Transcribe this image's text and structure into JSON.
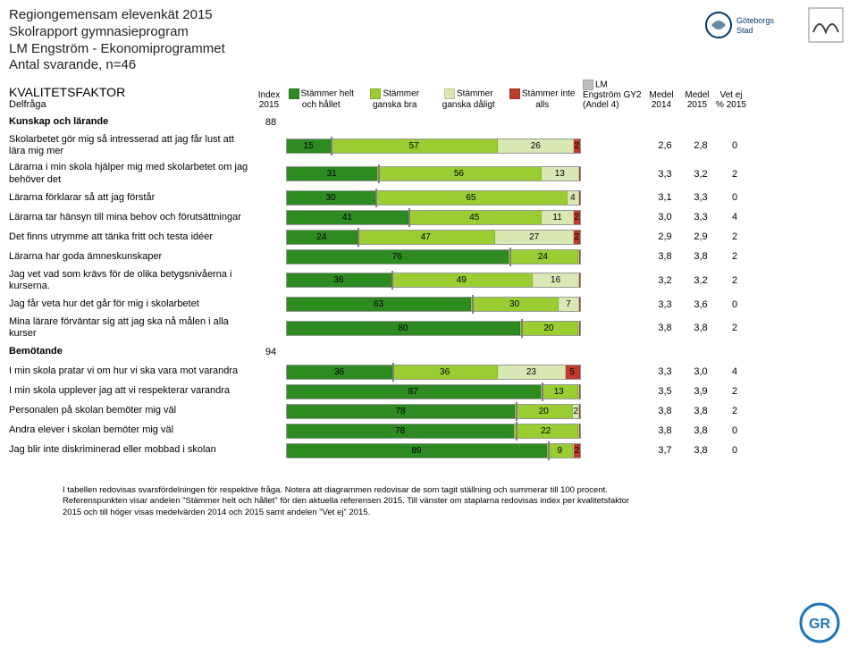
{
  "header": {
    "line1": "Regiongemensam elevenkät 2015",
    "line2": "Skolrapport gymnasieprogram",
    "line3": "LM Engström - Ekonomiprogrammet",
    "line4": "Antal svarande, n=46"
  },
  "logos": {
    "left": "Göteborgs Stad",
    "right": ""
  },
  "columns": {
    "kvalitet": "KVALITETSFAKTOR",
    "delfraga": "Delfråga",
    "index": "Index 2015",
    "seg1": "Stämmer helt och hållet",
    "seg2": "Stämmer ganska bra",
    "seg3": "Stämmer ganska dåligt",
    "seg4": "Stämmer inte alls",
    "ref": "LM Engström GY2 (Andel 4)",
    "m14": "Medel 2014",
    "m15": "Medel 2015",
    "vet": "Vet ej % 2015"
  },
  "colors": {
    "seg1": "#2e8b22",
    "seg2": "#9acd32",
    "seg3": "#d9e7b5",
    "seg4": "#c0392b",
    "ref_line": "#808080",
    "ref_legend": "#bfbfbf",
    "bar_border": "#999999"
  },
  "sections": [
    {
      "title": "Kunskap och lärande",
      "index": 88,
      "rows": [
        {
          "q": "Skolarbetet gör mig så  intresserad att jag får lust att lära mig mer",
          "segs": [
            15,
            57,
            26,
            2
          ],
          "ref": null,
          "m14": "2,6",
          "m15": "2,8",
          "vet": "0"
        },
        {
          "q": "Lärarna i min skola hjälper mig med skolarbetet om jag behöver det",
          "segs": [
            31,
            56,
            13,
            0
          ],
          "ref": null,
          "m14": "3,3",
          "m15": "3,2",
          "vet": "2"
        },
        {
          "q": "Lärarna förklarar så att jag förstår",
          "segs": [
            30,
            65,
            4,
            0
          ],
          "ref": null,
          "m14": "3,1",
          "m15": "3,3",
          "vet": "0"
        },
        {
          "q": "Lärarna tar hänsyn till mina behov och förutsättningar",
          "segs": [
            41,
            45,
            11,
            2
          ],
          "ref": null,
          "m14": "3,0",
          "m15": "3,3",
          "vet": "4"
        },
        {
          "q": "Det finns utrymme att tänka fritt och testa idéer",
          "segs": [
            24,
            47,
            27,
            2
          ],
          "ref": null,
          "m14": "2,9",
          "m15": "2,9",
          "vet": "2"
        },
        {
          "q": "Lärarna har goda ämneskunskaper",
          "segs": [
            76,
            24,
            0,
            0
          ],
          "ref": null,
          "m14": "3,8",
          "m15": "3,8",
          "vet": "2"
        },
        {
          "q": "Jag vet vad som krävs för de olika betygsnivåerna i kurserna.",
          "segs": [
            36,
            49,
            16,
            0
          ],
          "ref": null,
          "m14": "3,2",
          "m15": "3,2",
          "vet": "2"
        },
        {
          "q": "Jag får veta hur det går för mig i skolarbetet",
          "segs": [
            63,
            30,
            7,
            0
          ],
          "ref": null,
          "m14": "3,3",
          "m15": "3,6",
          "vet": "0"
        },
        {
          "q": "Mina lärare förväntar sig att jag ska nå målen i alla kurser",
          "segs": [
            80,
            20,
            0,
            0
          ],
          "ref": null,
          "m14": "3,8",
          "m15": "3,8",
          "vet": "2"
        }
      ]
    },
    {
      "title": "Bemötande",
      "index": 94,
      "rows": [
        {
          "q": "I min skola pratar vi om hur vi ska vara mot varandra",
          "segs": [
            36,
            36,
            23,
            5
          ],
          "ref": null,
          "m14": "3,3",
          "m15": "3,0",
          "vet": "4"
        },
        {
          "q": "I min skola upplever jag att vi respekterar varandra",
          "segs": [
            87,
            13,
            0,
            0
          ],
          "ref": null,
          "m14": "3,5",
          "m15": "3,9",
          "vet": "2"
        },
        {
          "q": "Personalen på skolan bemöter mig väl",
          "segs": [
            78,
            20,
            2,
            0
          ],
          "ref": null,
          "m14": "3,8",
          "m15": "3,8",
          "vet": "2"
        },
        {
          "q": "Andra elever i skolan bemöter mig väl",
          "segs": [
            78,
            22,
            0,
            0
          ],
          "ref": null,
          "m14": "3,8",
          "m15": "3,8",
          "vet": "0"
        },
        {
          "q": "Jag blir inte diskriminerad eller mobbad i skolan",
          "segs": [
            89,
            9,
            0,
            2
          ],
          "ref": null,
          "m14": "3,7",
          "m15": "3,8",
          "vet": "0"
        }
      ]
    }
  ],
  "footer": {
    "l1": "I tabellen redovisas svarsfördelningen för respektive fråga. Notera att diagrammen redovisar de som tagit ställning och summerar till 100 procent.",
    "l2": "Referenspunkten visar andelen \"Stämmer helt och hållet\" för den aktuella referensen 2015. Till vänster om staplarna redovisas index per kvalitetsfaktor",
    "l3": "2015 och till höger visas medelvärden 2014 och 2015  samt andelen \"Vet ej\" 2015."
  }
}
